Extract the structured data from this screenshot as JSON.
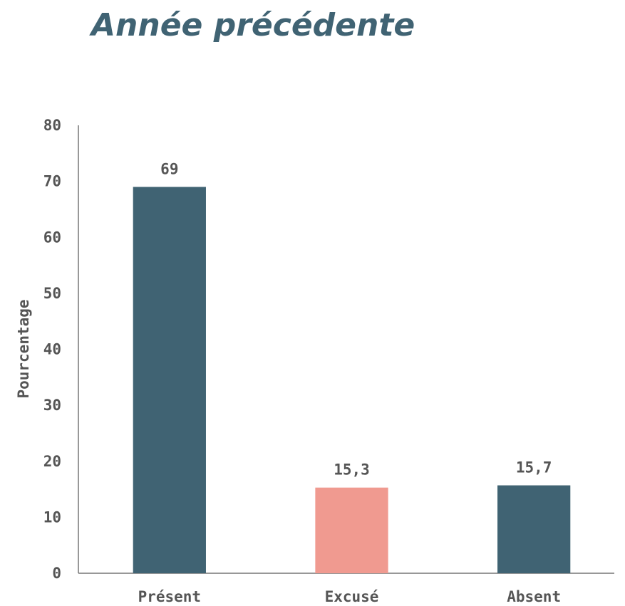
{
  "chart_data": {
    "type": "bar",
    "title": "Année précédente",
    "ylabel": "Pourcentage",
    "categories": [
      "Présent",
      "Excusé",
      "Absent"
    ],
    "values": [
      69,
      15.3,
      15.7
    ],
    "value_labels": [
      "69",
      "15,3",
      "15,7"
    ],
    "colors": [
      "#406373",
      "#f09a90",
      "#406373"
    ],
    "ylim": [
      0,
      80
    ],
    "yticks": [
      0,
      10,
      20,
      30,
      40,
      50,
      60,
      70,
      80
    ],
    "grid": false
  }
}
